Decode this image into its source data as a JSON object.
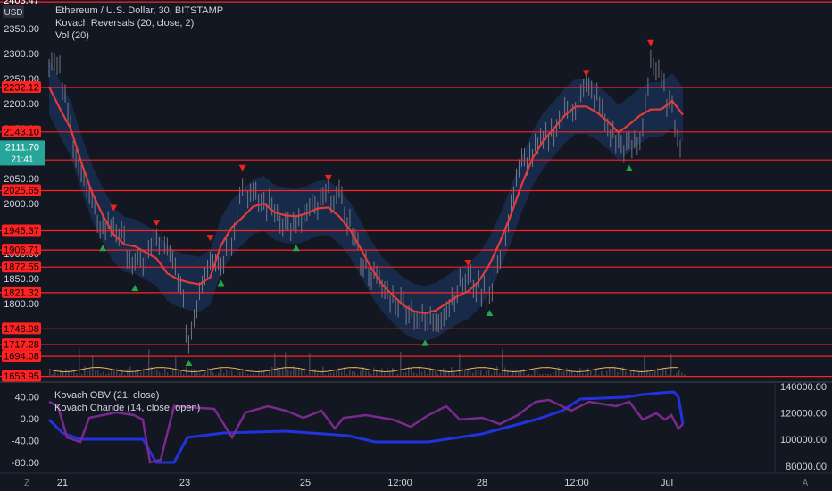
{
  "header": {
    "title": "Ethereum / U.S. Dollar, 30, BITSTAMP",
    "indicator_1": "Kovach Reversals (20, close, 2)",
    "indicator_2": "Vol (20)",
    "currency": "USD"
  },
  "price_axis": {
    "ticks": [
      "2350.00",
      "2300.00",
      "2250.00",
      "2200.00",
      "2150.00",
      "2100.00",
      "2050.00",
      "2000.00",
      "1950.00",
      "1900.00",
      "1850.00",
      "1800.00",
      "1750.00"
    ],
    "tick_values": [
      2350,
      2300,
      2250,
      2200,
      2150,
      2100,
      2050,
      2000,
      1950,
      1900,
      1850,
      1800,
      1750
    ],
    "top_partial_label": "2403.47",
    "current_price": "2111.70",
    "countdown": "21:41",
    "current_value": 2111.7
  },
  "levels": [
    {
      "label": "2403.47",
      "value": 2403.47
    },
    {
      "label": "2232.12",
      "value": 2232.12
    },
    {
      "label": "2143.10",
      "value": 2143.1
    },
    {
      "label": "2087.03",
      "value": 2087.03
    },
    {
      "label": "2025.65",
      "value": 2025.65
    },
    {
      "label": "1945.37",
      "value": 1945.37
    },
    {
      "label": "1906.71",
      "value": 1906.71
    },
    {
      "label": "1872.55",
      "value": 1872.55
    },
    {
      "label": "1821.32",
      "value": 1821.32
    },
    {
      "label": "1748.98",
      "value": 1748.98
    },
    {
      "label": "1717.28",
      "value": 1717.28
    },
    {
      "label": "1694.08",
      "value": 1694.08
    },
    {
      "label": "1653.95",
      "value": 1653.95
    }
  ],
  "price_series": [
    2290,
    2260,
    2150,
    2060,
    1990,
    1950,
    1960,
    1920,
    1870,
    1890,
    1930,
    1900,
    1860,
    1720,
    1830,
    1900,
    1880,
    1930,
    2040,
    2010,
    2000,
    1990,
    1960,
    1950,
    1980,
    1990,
    2020,
    2010,
    1960,
    1890,
    1860,
    1830,
    1810,
    1800,
    1780,
    1760,
    1770,
    1790,
    1830,
    1850,
    1830,
    1820,
    1890,
    2000,
    2080,
    2100,
    2120,
    2150,
    2180,
    2200,
    2230,
    2210,
    2150,
    2120,
    2110,
    2120,
    2290,
    2240,
    2180,
    2111.7
  ],
  "lower_pane": {
    "indicator_1": "Kovach OBV (21, close)",
    "indicator_2": "Kovach Chande (14, close, open)",
    "left_ticks": [
      "40.00",
      "0.00",
      "-40.00",
      "-80.00"
    ],
    "left_values": [
      40,
      0,
      -40,
      -80
    ],
    "right_ticks": [
      "140000.00",
      "120000.00",
      "100000.00",
      "80000.00"
    ],
    "right_values": [
      140000,
      120000,
      100000,
      80000
    ]
  },
  "time_axis": {
    "labels": [
      "21",
      "23",
      "25",
      "12:00",
      "28",
      "12:00",
      "Jul"
    ],
    "scale_mode": "Z",
    "auto_label": "A"
  },
  "colors": {
    "background": "#131722",
    "level_line": "#ff2222",
    "band_fill": "#1e3a6b",
    "ma_line": "#e23b3b",
    "up_marker": "#22a84a",
    "down_marker": "#ee2222",
    "obv_line": "#2233dd",
    "chande_line": "#7a2a8e",
    "volume_ma": "#e8b36a"
  }
}
